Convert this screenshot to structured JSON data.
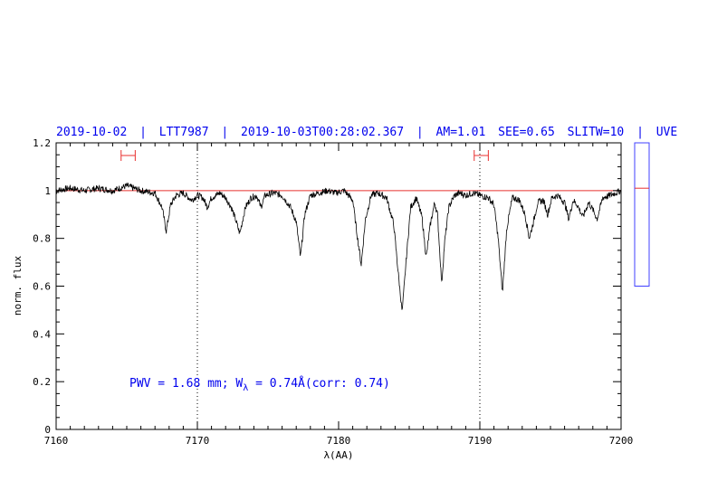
{
  "header": {
    "date": "2019-10-02",
    "target": "LTT7987",
    "timestamp": "2019-10-03T00:28:02.367",
    "airmass": "AM=1.01",
    "seeing": "SEE=0.65",
    "slit": "SLITW=10",
    "instrument": "UVE",
    "separator": "|"
  },
  "annotation": {
    "prefix": "PWV = 1.68 mm; W",
    "subscript": "λ",
    "suffix": " = 0.74Å(corr: 0.74)"
  },
  "colors": {
    "spectrum": "#000000",
    "continuum": "#e8302f",
    "text": "#0000ee",
    "side_box": "#4040ff",
    "marker": "#e8302f"
  },
  "chart_data": {
    "type": "line",
    "xlabel": "λ(AA)",
    "ylabel": "norm. flux",
    "xlim": [
      7160,
      7200
    ],
    "ylim": [
      0,
      1.2
    ],
    "x_ticks": [
      "7160",
      "7170",
      "7180",
      "7190",
      "7200"
    ],
    "y_ticks": [
      "0",
      "0.2",
      "0.4",
      "0.6",
      "0.8",
      "1",
      "1.2"
    ],
    "continuum_level": 1.0,
    "reference_lines_x": [
      7170,
      7190
    ],
    "continuum_windows": [
      [
        7164.6,
        7165.6
      ],
      [
        7189.6,
        7190.6
      ]
    ],
    "side_indicator": {
      "range": [
        0.6,
        1.2
      ],
      "value": 1.01
    },
    "series": [
      {
        "wavelength": [
          7160.0,
          7161.0,
          7162.0,
          7163.0,
          7164.0,
          7165.0,
          7166.0,
          7167.0,
          7167.5,
          7167.8,
          7168.1,
          7168.5,
          7169.0,
          7169.6,
          7170.0,
          7170.4,
          7170.7,
          7171.0,
          7171.6,
          7172.0,
          7172.4,
          7172.7,
          7173.0,
          7173.4,
          7173.8,
          7174.2,
          7174.5,
          7174.8,
          7175.4,
          7176.0,
          7176.6,
          7177.0,
          7177.3,
          7177.6,
          7178.0,
          7178.6,
          7179.2,
          7179.8,
          7180.4,
          7181.0,
          7181.3,
          7181.6,
          7181.9,
          7182.3,
          7182.8,
          7183.4,
          7183.9,
          7184.2,
          7184.5,
          7184.8,
          7185.1,
          7185.5,
          7185.9,
          7186.2,
          7186.5,
          7186.8,
          7187.0,
          7187.3,
          7187.5,
          7187.8,
          7188.2,
          7188.6,
          7189.0,
          7189.5,
          7190.0,
          7190.6,
          7191.0,
          7191.3,
          7191.6,
          7191.9,
          7192.3,
          7192.8,
          7193.2,
          7193.5,
          7193.8,
          7194.1,
          7194.5,
          7194.8,
          7195.1,
          7195.5,
          7196.0,
          7196.3,
          7196.6,
          7196.9,
          7197.3,
          7197.7,
          7198.0,
          7198.3,
          7198.7,
          7199.2,
          7199.6,
          7200.0
        ],
        "flux": [
          1.0,
          1.01,
          1.0,
          1.01,
          1.0,
          1.02,
          1.0,
          0.99,
          0.93,
          0.83,
          0.94,
          0.98,
          0.99,
          0.96,
          0.98,
          0.97,
          0.93,
          0.97,
          0.99,
          0.97,
          0.93,
          0.88,
          0.82,
          0.93,
          0.97,
          0.98,
          0.93,
          0.98,
          0.99,
          0.98,
          0.93,
          0.87,
          0.72,
          0.9,
          0.98,
          0.99,
          1.0,
          0.99,
          1.0,
          0.96,
          0.82,
          0.69,
          0.88,
          0.98,
          0.99,
          0.97,
          0.86,
          0.67,
          0.49,
          0.72,
          0.93,
          0.97,
          0.89,
          0.72,
          0.86,
          0.95,
          0.9,
          0.61,
          0.78,
          0.93,
          0.98,
          0.99,
          0.98,
          0.99,
          0.98,
          0.97,
          0.94,
          0.8,
          0.57,
          0.84,
          0.97,
          0.96,
          0.9,
          0.8,
          0.87,
          0.95,
          0.96,
          0.9,
          0.97,
          0.98,
          0.95,
          0.88,
          0.96,
          0.94,
          0.89,
          0.95,
          0.92,
          0.88,
          0.97,
          0.98,
          0.99,
          1.0
        ]
      }
    ]
  }
}
